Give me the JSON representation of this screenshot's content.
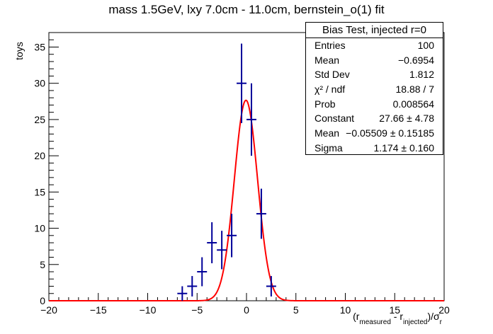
{
  "chart_data": {
    "type": "histogram_with_fit",
    "title": "mass 1.5GeV, lxy 7.0cm - 11.0cm, bernstein_o(1) fit",
    "ylabel": "toys",
    "xlabel_parts": {
      "open": "(r",
      "sub1": "measured",
      "mid": " - r",
      "sub2": "injected",
      "close": ")/σ",
      "sub3": "r"
    },
    "xlim": [
      -20,
      20
    ],
    "ylim": [
      0,
      37
    ],
    "x_ticks": [
      -20,
      -15,
      -10,
      -5,
      0,
      5,
      10,
      15,
      20
    ],
    "y_ticks": [
      0,
      5,
      10,
      15,
      20,
      25,
      30,
      35
    ],
    "bin_width": 1,
    "points": [
      {
        "x": -6.5,
        "y": 1,
        "err": 1.0
      },
      {
        "x": -5.5,
        "y": 2,
        "err": 1.41
      },
      {
        "x": -4.5,
        "y": 4,
        "err": 2.0
      },
      {
        "x": -3.5,
        "y": 8,
        "err": 2.83
      },
      {
        "x": -2.5,
        "y": 7,
        "err": 2.65
      },
      {
        "x": -1.5,
        "y": 9,
        "err": 3.0
      },
      {
        "x": -0.5,
        "y": 30,
        "err": 5.48
      },
      {
        "x": 0.5,
        "y": 25,
        "err": 5.0
      },
      {
        "x": 1.5,
        "y": 12,
        "err": 3.46
      },
      {
        "x": 2.5,
        "y": 2,
        "err": 1.41
      }
    ],
    "fit": {
      "function": "gaus",
      "constant": 27.66,
      "mean": -0.05509,
      "sigma": 1.174,
      "color": "#ff0000"
    },
    "marker_color": "#000099",
    "stats": {
      "title": "Bias Test, injected r=0",
      "rows": [
        {
          "key": "Entries",
          "value": "100"
        },
        {
          "key": "Mean",
          "value": "−0.6954"
        },
        {
          "key": "Std Dev",
          "value": "1.812"
        },
        {
          "key": "χ² / ndf",
          "value": "18.88 / 7"
        },
        {
          "key": "Prob",
          "value": "0.008564"
        },
        {
          "key": "Constant",
          "value": "27.66 ± 4.78"
        },
        {
          "key": "Mean",
          "value": "−0.05509 ± 0.15185"
        },
        {
          "key": "Sigma",
          "value": "1.174 ± 0.160"
        }
      ]
    }
  }
}
